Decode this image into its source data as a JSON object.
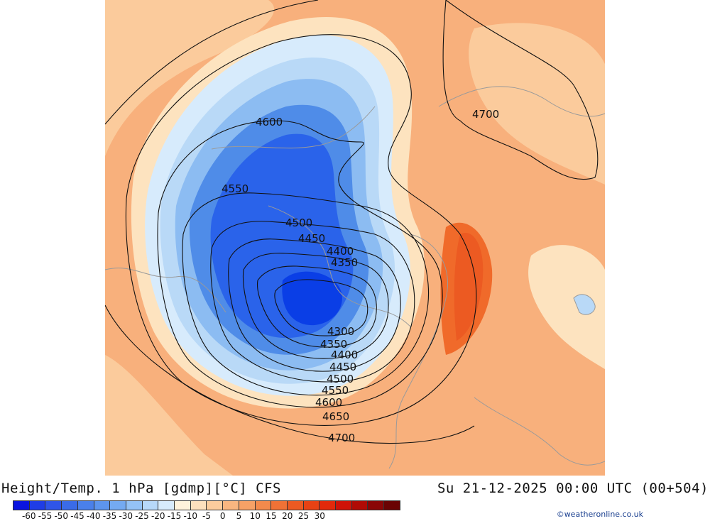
{
  "map": {
    "title": "Height/Temp. 1 hPa [gdmp][°C] CFS",
    "datetime": "Su 21-12-2025 00:00 UTC (00+504)",
    "credit": "©weatheronline.co.uk",
    "colors": {
      "background_warm": "#f8b07c",
      "cold_core": "#0a3ee6",
      "very_cold": "#2a63ea",
      "cold": "#4f8ce8",
      "cool": "#8cbcf2",
      "cool_light": "#b9d9f7",
      "near_zero": "#fde3bf",
      "warm_light": "#fbcb9c",
      "warm": "#f6a46c",
      "hot": "#f06a2a",
      "contour": "#111111"
    },
    "contour_labels": {
      "north_west_4600": "4600",
      "north_east_4700": "4700",
      "west_4550": "4550",
      "inner_4500": "4500",
      "inner_4450": "4450",
      "inner_4400": "4400",
      "inner_4350": "4350",
      "south_4300": "4300",
      "south_4350": "4350",
      "south_4400": "4400",
      "south_4450": "4450",
      "south_4500": "4500",
      "south_4550": "4550",
      "south_4600": "4600",
      "south_4650": "4650",
      "south_4700": "4700"
    }
  },
  "legend": {
    "colors": [
      "#0a14e0",
      "#1f3de6",
      "#2f55e8",
      "#3a6be8",
      "#4a80ea",
      "#5d95ee",
      "#74aaf2",
      "#94c2f6",
      "#b7d8f9",
      "#d7ebfc",
      "#fff3dc",
      "#fde0bd",
      "#fbcc9d",
      "#f8b680",
      "#f6a166",
      "#f38a4c",
      "#f07236",
      "#ec5a22",
      "#e84214",
      "#e2290b",
      "#cf1208",
      "#b00b05",
      "#8a0606",
      "#6a0303"
    ],
    "ticks": [
      "-60",
      "-55",
      "-50",
      "-45",
      "-40",
      "-35",
      "-30",
      "-25",
      "-20",
      "-15",
      "-10",
      "-5",
      "0",
      "5",
      "10",
      "15",
      "20",
      "25",
      "30"
    ]
  }
}
